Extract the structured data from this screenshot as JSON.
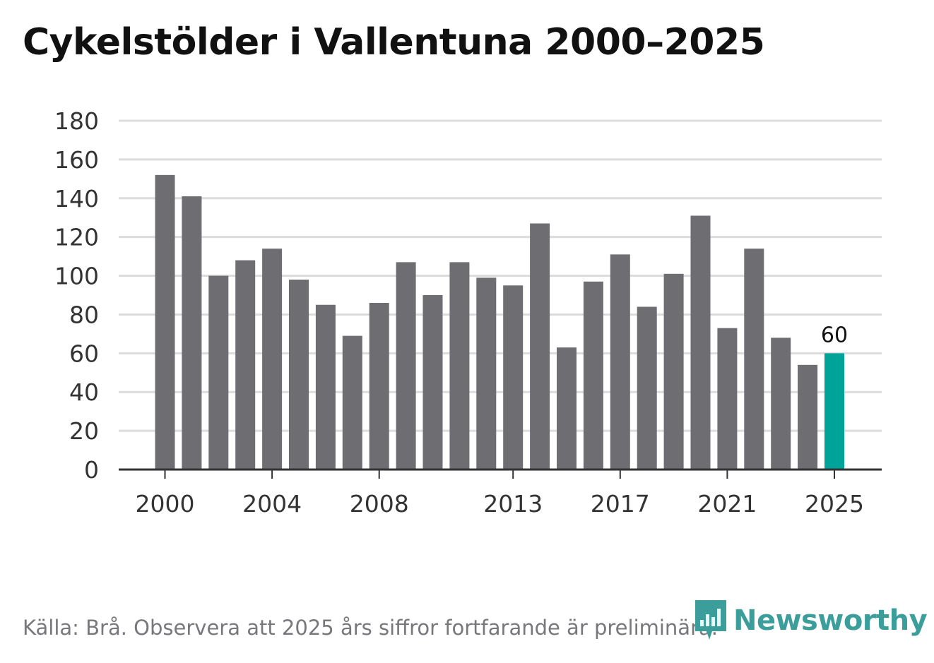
{
  "chart_data": {
    "type": "bar",
    "title": "Cykelstölder i Vallentuna 2000–2025",
    "categories": [
      "2000",
      "2001",
      "2002",
      "2003",
      "2004",
      "2005",
      "2006",
      "2007",
      "2008",
      "2009",
      "2010",
      "2011",
      "2012",
      "2013",
      "2014",
      "2015",
      "2016",
      "2017",
      "2018",
      "2019",
      "2020",
      "2021",
      "2022",
      "2023",
      "2024",
      "2025"
    ],
    "values": [
      152,
      141,
      100,
      108,
      114,
      98,
      85,
      69,
      86,
      107,
      90,
      107,
      99,
      95,
      127,
      63,
      97,
      111,
      84,
      101,
      131,
      73,
      114,
      68,
      54,
      60
    ],
    "x_tick_labels": [
      "2000",
      "2004",
      "2008",
      "2013",
      "2017",
      "2021",
      "2025"
    ],
    "y_ticks": [
      0,
      20,
      40,
      60,
      80,
      100,
      120,
      140,
      160,
      180
    ],
    "ylim": [
      0,
      180
    ],
    "grid": true,
    "xlabel": "",
    "ylabel": "",
    "highlight": {
      "category": "2025",
      "label": "60"
    },
    "colors": {
      "bar": "#6e6d72",
      "highlight": "#00a397",
      "grid": "#dcdcdc",
      "axis": "#333333"
    }
  },
  "footer": {
    "source": "Källa: Brå. Observera att 2025 års siffror fortfarande är preliminära.",
    "brand": "Newsworthy",
    "brand_icon": "newsworthy-logo-icon",
    "brand_color": "#3b9e9a"
  }
}
